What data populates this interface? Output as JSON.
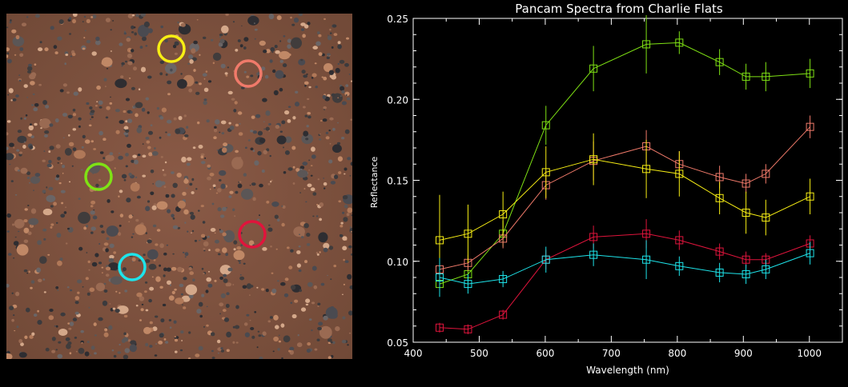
{
  "photo": {
    "markers": [
      {
        "color": "#f7ee14",
        "label": "yellow-target"
      },
      {
        "color": "#f07a6a",
        "label": "salmon-target"
      },
      {
        "color": "#7fe214",
        "label": "green-target"
      },
      {
        "color": "#e0143c",
        "label": "red-target"
      },
      {
        "color": "#1ee4ea",
        "label": "cyan-target"
      }
    ]
  },
  "chart_data": {
    "type": "line",
    "title": "Pancam Spectra from Charlie Flats",
    "xlabel": "Wavelength (nm)",
    "ylabel": "Reflectance",
    "xlim": [
      400,
      1050
    ],
    "ylim": [
      0.05,
      0.25
    ],
    "xticks": [
      400,
      500,
      600,
      700,
      800,
      900,
      1000
    ],
    "yticks": [
      0.05,
      0.1,
      0.15,
      0.2,
      0.25
    ],
    "ytick_labels": [
      "0.05",
      "0.10",
      "0.15",
      "0.20",
      "0.25"
    ],
    "x": [
      440,
      483,
      536,
      601,
      673,
      753,
      803,
      864,
      904,
      934,
      1001
    ],
    "grid": false,
    "series": [
      {
        "color": "#7fe214",
        "values": [
          0.086,
          0.092,
          0.117,
          0.184,
          0.219,
          0.234,
          0.235,
          0.223,
          0.214,
          0.214,
          0.216
        ],
        "errors": [
          0.006,
          0.006,
          0.008,
          0.012,
          0.014,
          0.018,
          0.007,
          0.008,
          0.008,
          0.009,
          0.009
        ]
      },
      {
        "color": "#f07a6a",
        "values": [
          0.095,
          0.099,
          0.114,
          0.147,
          0.162,
          0.171,
          0.16,
          0.152,
          0.148,
          0.154,
          0.183
        ],
        "errors": [
          0.005,
          0.005,
          0.006,
          0.009,
          0.012,
          0.01,
          0.008,
          0.007,
          0.006,
          0.006,
          0.007
        ]
      },
      {
        "color": "#f7ee14",
        "values": [
          0.113,
          0.117,
          0.129,
          0.155,
          0.163,
          0.157,
          0.154,
          0.139,
          0.13,
          0.127,
          0.14
        ],
        "errors": [
          0.028,
          0.018,
          0.014,
          0.016,
          0.016,
          0.018,
          0.014,
          0.01,
          0.013,
          0.011,
          0.011
        ]
      },
      {
        "color": "#e0143c",
        "values": [
          0.059,
          0.058,
          0.067,
          0.101,
          0.115,
          0.117,
          0.113,
          0.106,
          0.101,
          0.101,
          0.111
        ],
        "errors": [
          0.003,
          0.003,
          0.003,
          0.006,
          0.007,
          0.009,
          0.006,
          0.005,
          0.005,
          0.004,
          0.005
        ]
      },
      {
        "color": "#1ee4ea",
        "values": [
          0.09,
          0.086,
          0.089,
          0.101,
          0.104,
          0.101,
          0.097,
          0.093,
          0.092,
          0.095,
          0.105
        ],
        "errors": [
          0.012,
          0.006,
          0.005,
          0.008,
          0.007,
          0.012,
          0.006,
          0.006,
          0.006,
          0.006,
          0.007
        ]
      }
    ]
  }
}
